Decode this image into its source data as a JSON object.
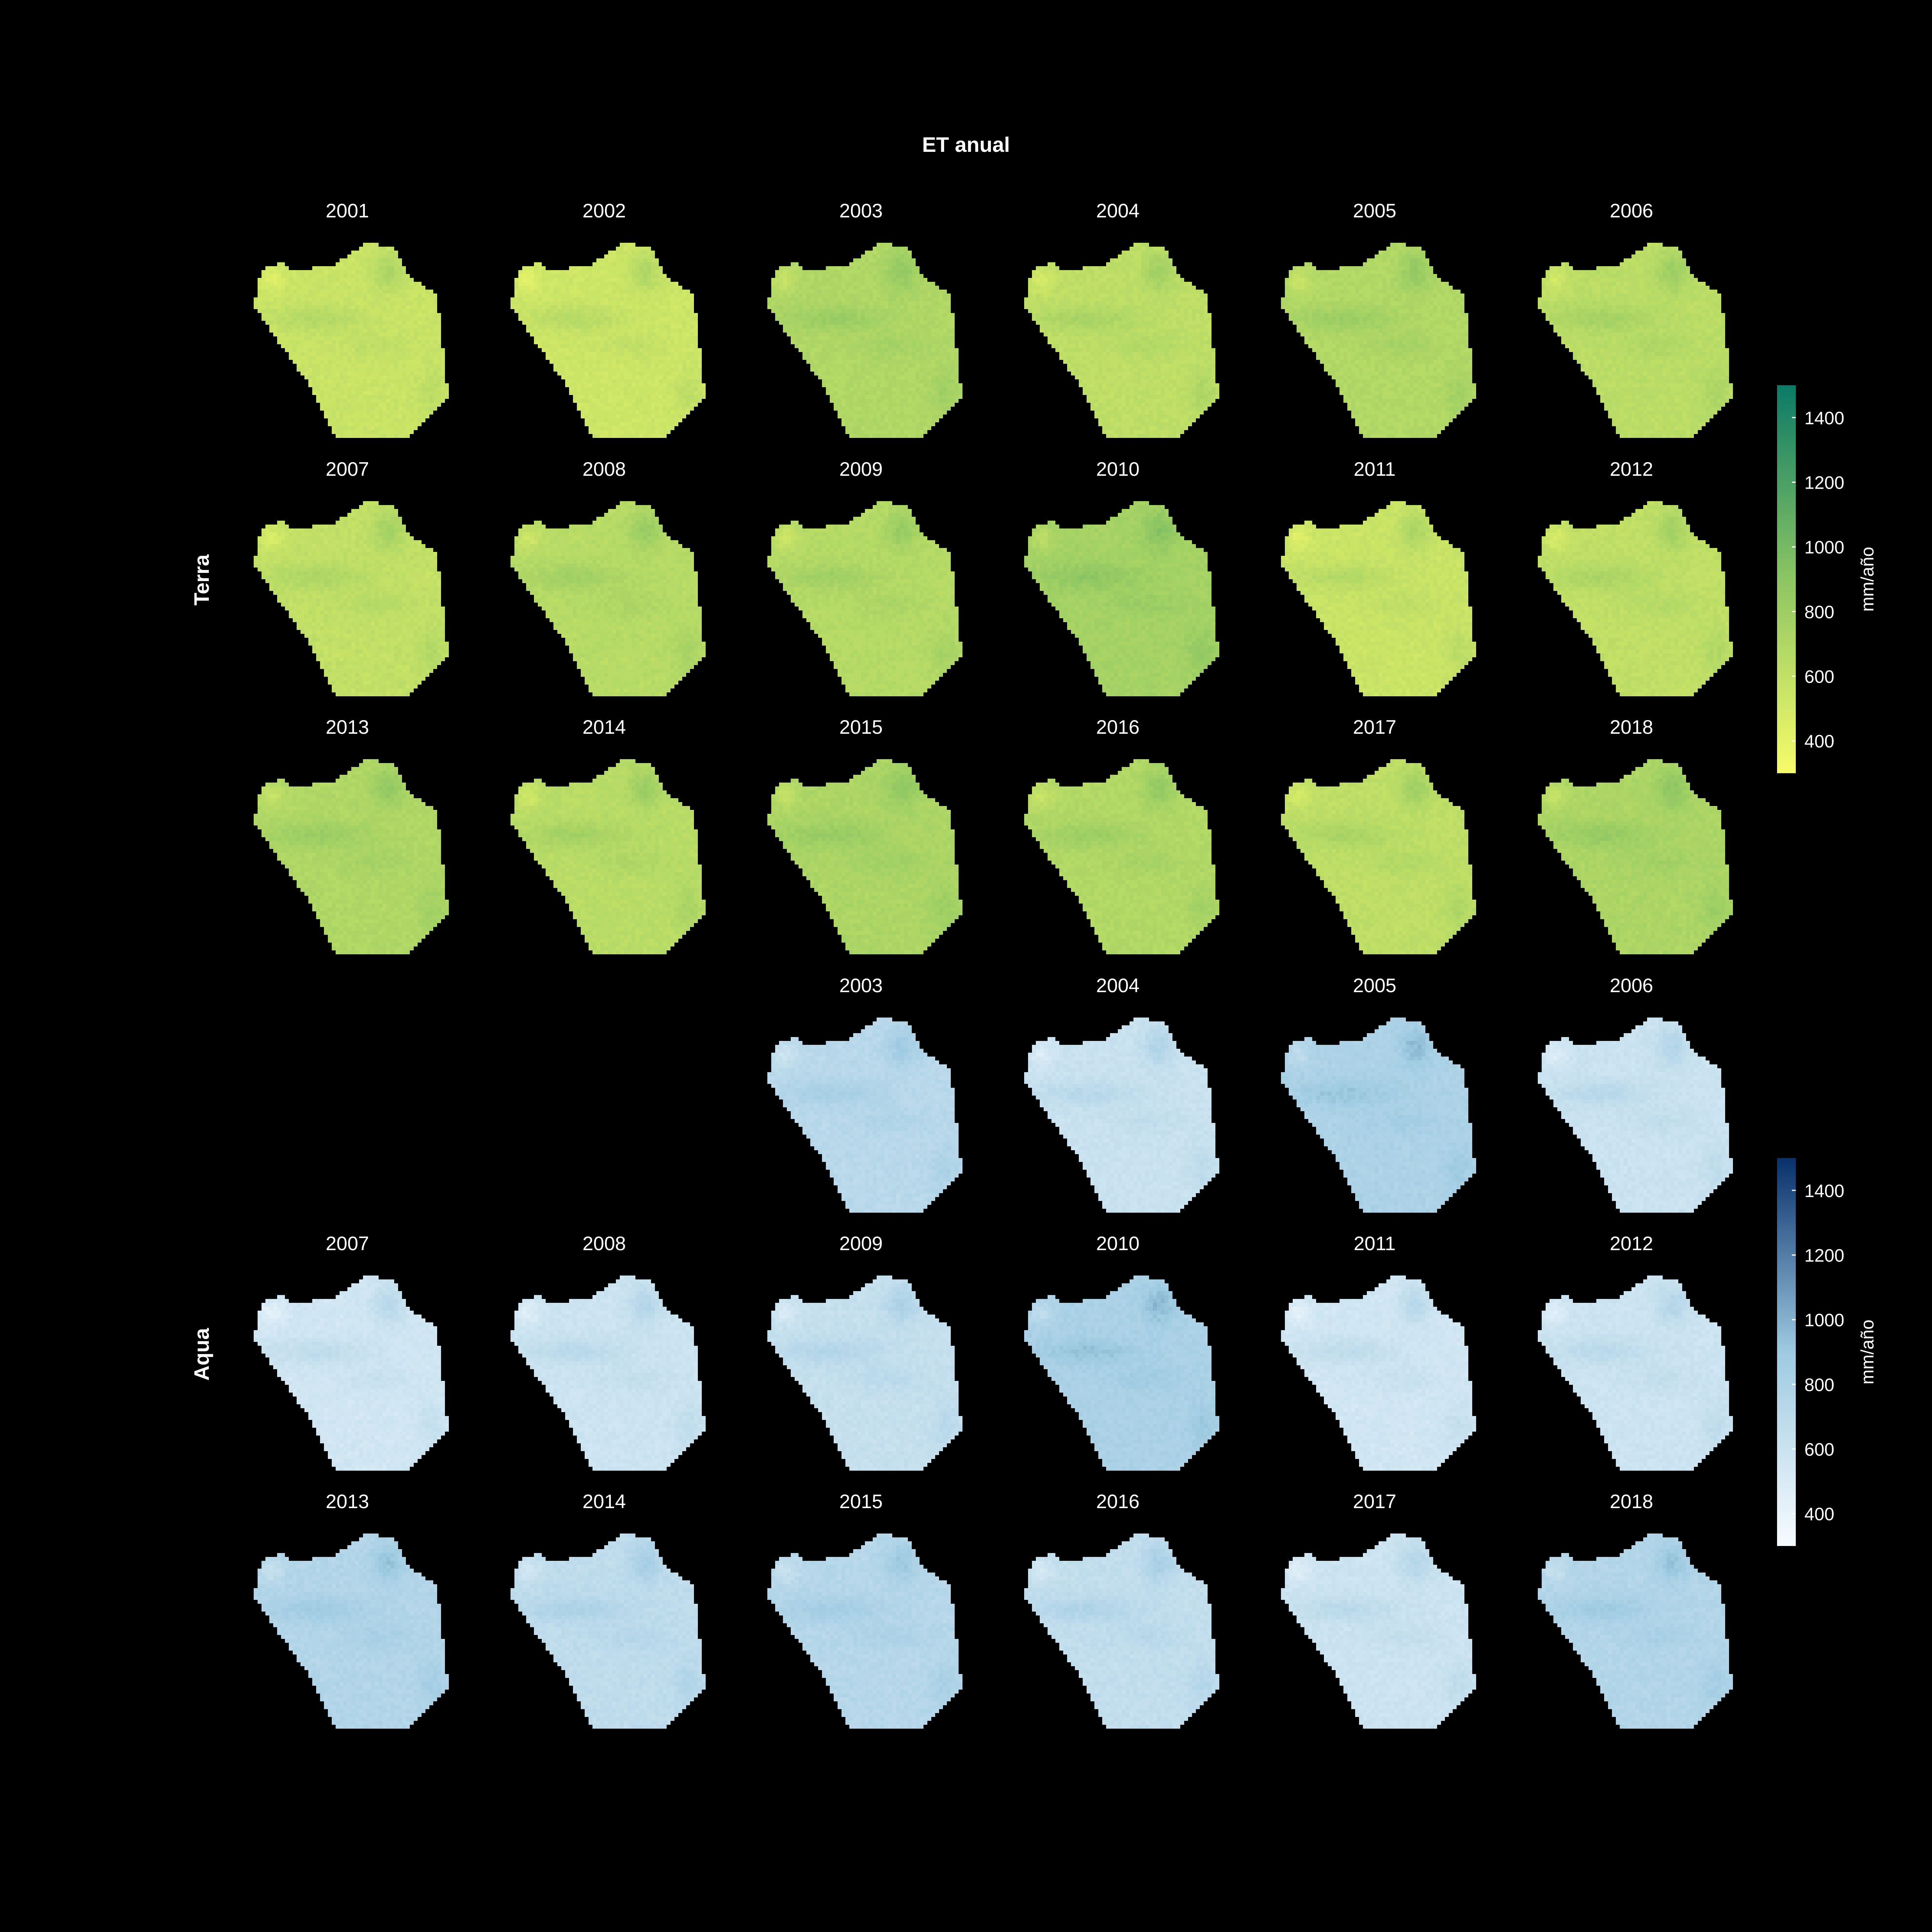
{
  "chart_data": {
    "type": "heatmap",
    "title": "ET anual",
    "colors": {
      "background": "#000000",
      "text": "#ffffff",
      "terra_low": "#f7fb6a",
      "terra_mid": "#8cc563",
      "terra_high": "#0b7a66",
      "aqua_low": "#f7fbff",
      "aqua_mid": "#9ecae1",
      "aqua_high": "#08306b"
    },
    "colorbar_ticks": [
      "1400",
      "1200",
      "1000",
      "800",
      "600",
      "400"
    ],
    "colorbar_range": [
      300,
      1500
    ],
    "groups": [
      {
        "name": "Terra",
        "colorbar_label": "mm/año",
        "panels": [
          {
            "year": "2001",
            "mean_et": 560
          },
          {
            "year": "2002",
            "mean_et": 540
          },
          {
            "year": "2003",
            "mean_et": 700
          },
          {
            "year": "2004",
            "mean_et": 620
          },
          {
            "year": "2005",
            "mean_et": 690
          },
          {
            "year": "2006",
            "mean_et": 640
          },
          {
            "year": "2007",
            "mean_et": 600
          },
          {
            "year": "2008",
            "mean_et": 660
          },
          {
            "year": "2009",
            "mean_et": 670
          },
          {
            "year": "2010",
            "mean_et": 760
          },
          {
            "year": "2011",
            "mean_et": 560
          },
          {
            "year": "2012",
            "mean_et": 610
          },
          {
            "year": "2013",
            "mean_et": 700
          },
          {
            "year": "2014",
            "mean_et": 650
          },
          {
            "year": "2015",
            "mean_et": 720
          },
          {
            "year": "2016",
            "mean_et": 690
          },
          {
            "year": "2017",
            "mean_et": 620
          },
          {
            "year": "2018",
            "mean_et": 720
          }
        ]
      },
      {
        "name": "Aqua",
        "colorbar_label": "mm/año",
        "panels": [
          {
            "year": "2003",
            "mean_et": 720
          },
          {
            "year": "2004",
            "mean_et": 610
          },
          {
            "year": "2005",
            "mean_et": 800
          },
          {
            "year": "2006",
            "mean_et": 600
          },
          {
            "year": "2007",
            "mean_et": 560
          },
          {
            "year": "2008",
            "mean_et": 590
          },
          {
            "year": "2009",
            "mean_et": 640
          },
          {
            "year": "2010",
            "mean_et": 810
          },
          {
            "year": "2011",
            "mean_et": 560
          },
          {
            "year": "2012",
            "mean_et": 590
          },
          {
            "year": "2013",
            "mean_et": 760
          },
          {
            "year": "2014",
            "mean_et": 680
          },
          {
            "year": "2015",
            "mean_et": 740
          },
          {
            "year": "2016",
            "mean_et": 660
          },
          {
            "year": "2017",
            "mean_et": 590
          },
          {
            "year": "2018",
            "mean_et": 760
          }
        ]
      }
    ]
  }
}
